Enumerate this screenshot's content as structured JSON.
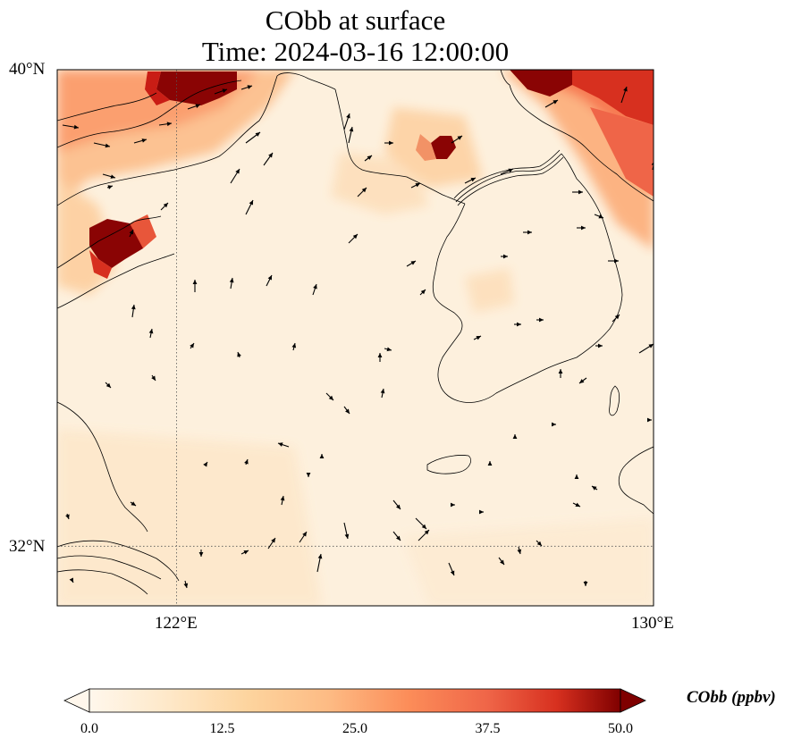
{
  "title": {
    "line1": "CObb at surface",
    "line2": "Time: 2024-03-16 12:00:00"
  },
  "map": {
    "projection": "plate carree",
    "lon_range": [
      120,
      130
    ],
    "lat_range": [
      31,
      40
    ],
    "x_ticks": [
      {
        "lon": 122,
        "label": "122°E"
      },
      {
        "lon": 130,
        "label": "130°E"
      }
    ],
    "y_ticks": [
      {
        "lat": 40,
        "label": "40°N"
      },
      {
        "lat": 32,
        "label": "32°N"
      }
    ],
    "gridlines": {
      "style": "dotted",
      "lons": [
        122
      ],
      "lats": [
        32
      ]
    },
    "field": "CObb",
    "units": "ppbv",
    "colormap": "OrRd",
    "colors": {
      "low": "#fff7ec",
      "mid": "#fdd49e",
      "high": "#7f0000",
      "coast": "#000000"
    }
  },
  "colorbar": {
    "label": "CObb (ppbv)",
    "min": 0,
    "max": 50,
    "extend": "both",
    "ticks": [
      "0.0",
      "12.5",
      "25.0",
      "37.5",
      "50.0"
    ]
  }
}
